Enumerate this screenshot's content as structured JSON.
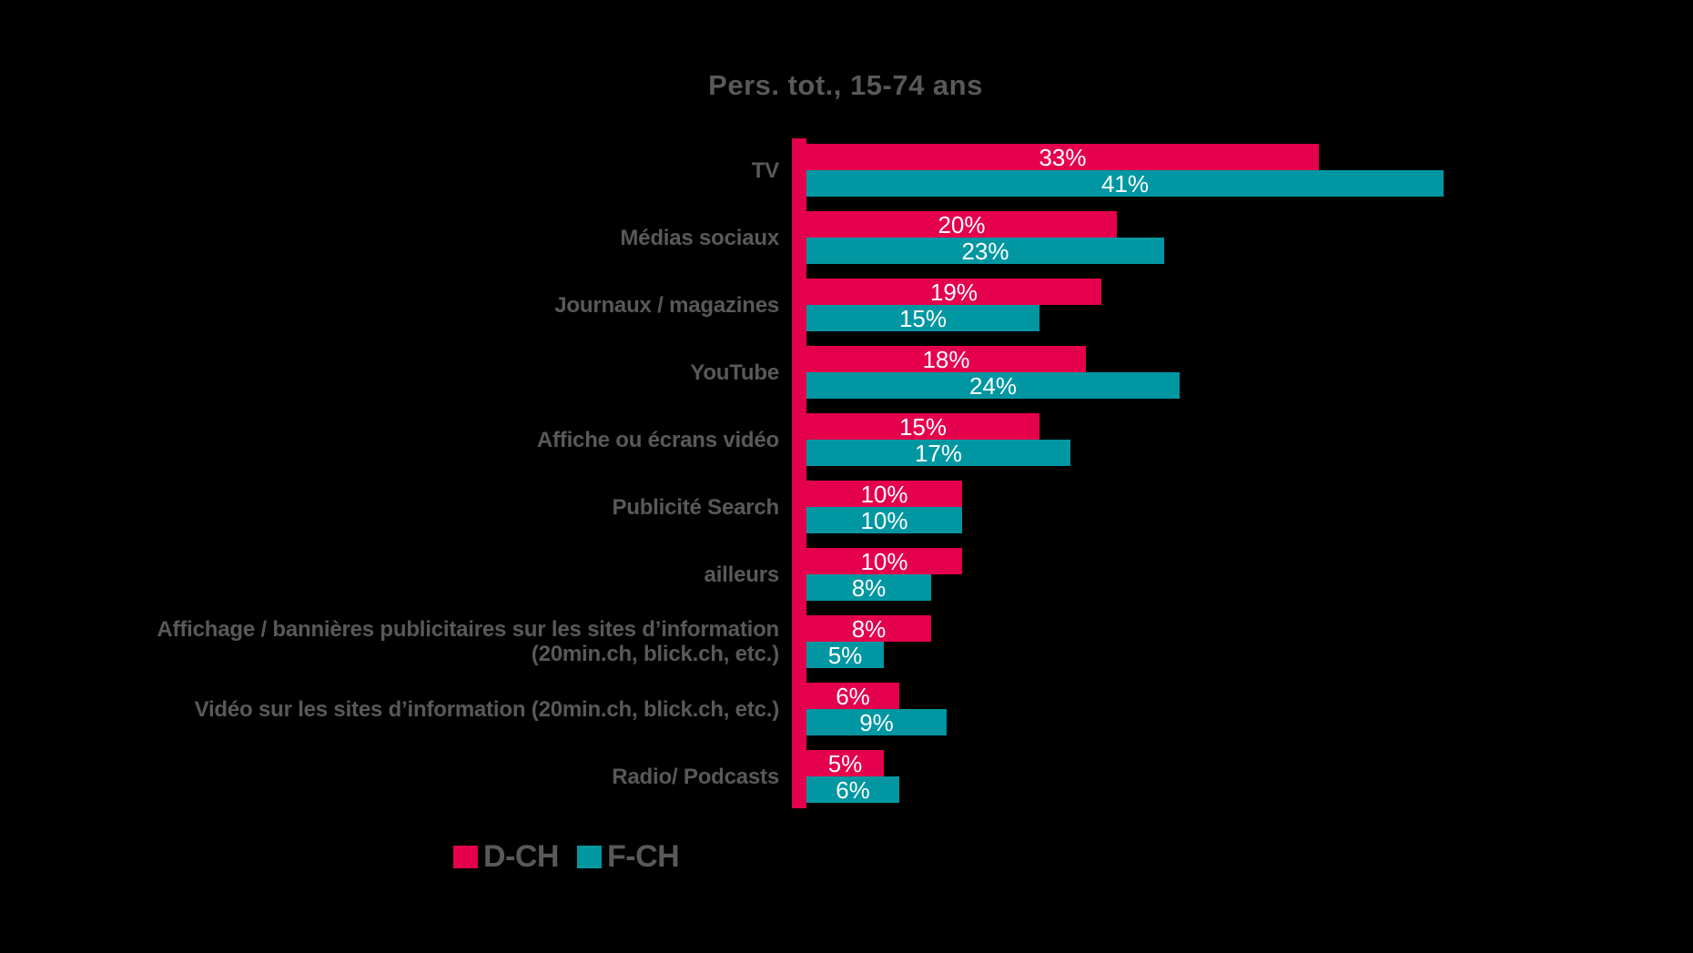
{
  "title": "Pers. tot., 15-74 ans",
  "colors": {
    "d_ch": "#E4004D",
    "f_ch": "#0097A2",
    "text_gray": "#58595B",
    "value_text": "#FFFFFF",
    "background": "#000000"
  },
  "legend": [
    {
      "label": "D-CH",
      "color_key": "d_ch"
    },
    {
      "label": "F-CH",
      "color_key": "f_ch"
    }
  ],
  "chart_data": {
    "type": "bar",
    "orientation": "horizontal",
    "title": "Pers. tot., 15-74 ans",
    "unit": "%",
    "value_labels": true,
    "xlim": [
      0,
      41
    ],
    "legend_position": "bottom-left",
    "grid": false,
    "categories": [
      "TV",
      "Médias sociaux",
      "Journaux / magazines",
      "YouTube",
      "Affiche ou écrans vidéo",
      "Publicité Search",
      "ailleurs",
      "Affichage / bannières publicitaires sur les sites d’information\n(20min.ch, blick.ch, etc.)",
      "Vidéo sur les sites d’information (20min.ch, blick.ch, etc.)",
      "Radio/ Podcasts"
    ],
    "series": [
      {
        "name": "D-CH",
        "color": "#E4004D",
        "values": [
          33,
          20,
          19,
          18,
          15,
          10,
          10,
          8,
          6,
          5
        ]
      },
      {
        "name": "F-CH",
        "color": "#0097A2",
        "values": [
          41,
          23,
          15,
          24,
          17,
          10,
          8,
          5,
          9,
          6
        ]
      }
    ]
  }
}
